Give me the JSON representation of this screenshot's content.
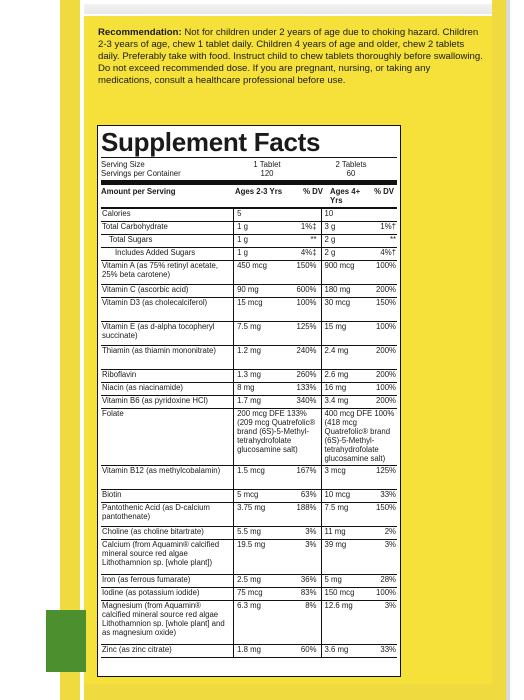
{
  "recommendation": {
    "label": "Recommendation:",
    "text": " Not for children under 2 years of age due to choking hazard. Children 2-3 years of age, chew 1 tablet daily. Children 4 years of age and older, chew 2 tablets daily. Preferably take with food. Instruct child to chew tablets thoroughly before swallowing. Do not exceed recommended dose. If you are pregnant, nursing, or taking any medications, consult a healthcare professional before use."
  },
  "facts": {
    "title": "Supplement Facts",
    "serving_size_label": "Serving Size",
    "serving_size_1": "1 Tablet",
    "serving_size_2": "2 Tablets",
    "servings_label": "Servings per Container",
    "servings_1": "120",
    "servings_2": "60",
    "header": {
      "amount": "Amount per Serving",
      "ages1": "Ages 2-3 Yrs",
      "dv1": "% DV",
      "ages2": "Ages 4+ Yrs",
      "dv2": "% DV"
    },
    "rows": [
      {
        "name": "Calories",
        "a1": "5",
        "d1": "",
        "a2": "10",
        "d2": ""
      },
      {
        "name": "Total Carbohydrate",
        "a1": "1 g",
        "d1": "1%‡",
        "a2": "3 g",
        "d2": "1%†"
      },
      {
        "name": "Total Sugars",
        "a1": "1 g",
        "d1": "**",
        "a2": "2 g",
        "d2": "**"
      },
      {
        "name": "Includes Added Sugars",
        "a1": "1 g",
        "d1": "4%‡",
        "a2": "2 g",
        "d2": "4%†"
      },
      {
        "name": "Vitamin A (as 75% retinyl acetate, 25% beta carotene)",
        "a1": "450 mcg",
        "d1": "150%",
        "a2": "900 mcg",
        "d2": "100%"
      },
      {
        "name": "Vitamin C (ascorbic acid)",
        "a1": "90 mg",
        "d1": "600%",
        "a2": "180 mg",
        "d2": "200%"
      },
      {
        "name": "Vitamin D3 (as cholecalciferol)",
        "a1": "15 mcg",
        "d1": "100%",
        "a2": "30 mcg",
        "d2": "150%"
      },
      {
        "name": "Vitamin E (as d-alpha tocopheryl succinate)",
        "a1": "7.5 mg",
        "d1": "125%",
        "a2": "15 mg",
        "d2": "100%"
      },
      {
        "name": "Thiamin (as thiamin mononitrate)",
        "a1": "1.2 mg",
        "d1": "240%",
        "a2": "2.4 mg",
        "d2": "200%"
      },
      {
        "name": "Riboflavin",
        "a1": "1.3 mg",
        "d1": "260%",
        "a2": "2.6 mg",
        "d2": "200%"
      },
      {
        "name": "Niacin (as niacinamide)",
        "a1": "8 mg",
        "d1": "133%",
        "a2": "16 mg",
        "d2": "100%"
      },
      {
        "name": "Vitamin B6 (as pyridoxine HCl)",
        "a1": "1.7 mg",
        "d1": "340%",
        "a2": "3.4 mg",
        "d2": "200%"
      }
    ],
    "folate": {
      "name": "Folate",
      "a1": "200 mcg DFE 133% (209 mcg Quatrefolic® brand (6S)-5-Methyl-tetrahydrofolate glucosamine salt)",
      "a2": "400 mcg DFE 100% (418 mcg Quatrefolic® brand (6S)-5-Methyl-tetrahydrofolate glucosamine salt)"
    },
    "rows2": [
      {
        "name": "Vitamin B12 (as methylcobalamin)",
        "a1": "1.5 mcg",
        "d1": "167%",
        "a2": "3 mcg",
        "d2": "125%"
      },
      {
        "name": "Biotin",
        "a1": "5 mcg",
        "d1": "63%",
        "a2": "10 mcg",
        "d2": "33%"
      },
      {
        "name": "Pantothenic Acid (as D-calcium pantothenate)",
        "a1": "3.75 mg",
        "d1": "188%",
        "a2": "7.5 mg",
        "d2": "150%"
      },
      {
        "name": "Choline (as choline bitartrate)",
        "a1": "5.5 mg",
        "d1": "3%",
        "a2": "11 mg",
        "d2": "2%"
      },
      {
        "name": "Calcium (from Aquamin® calcified mineral source red algae Lithothamnion sp. [whole plant])",
        "a1": "19.5 mg",
        "d1": "3%",
        "a2": "39 mg",
        "d2": "3%"
      },
      {
        "name": "Iron (as ferrous fumarate)",
        "a1": "2.5 mg",
        "d1": "36%",
        "a2": "5 mg",
        "d2": "28%"
      },
      {
        "name": "Iodine (as potassium iodide)",
        "a1": "75 mcg",
        "d1": "83%",
        "a2": "150 mcg",
        "d2": "100%"
      },
      {
        "name": "Magnesium (from Aquamin® calcified mineral source red algae Lithothamnion sp. [whole plant] and as magnesium oxide)",
        "a1": "6.3 mg",
        "d1": "8%",
        "a2": "12.6 mg",
        "d2": "3%"
      },
      {
        "name": "Zinc (as zinc citrate)",
        "a1": "1.8 mg",
        "d1": "60%",
        "a2": "3.6 mg",
        "d2": "33%"
      }
    ]
  }
}
